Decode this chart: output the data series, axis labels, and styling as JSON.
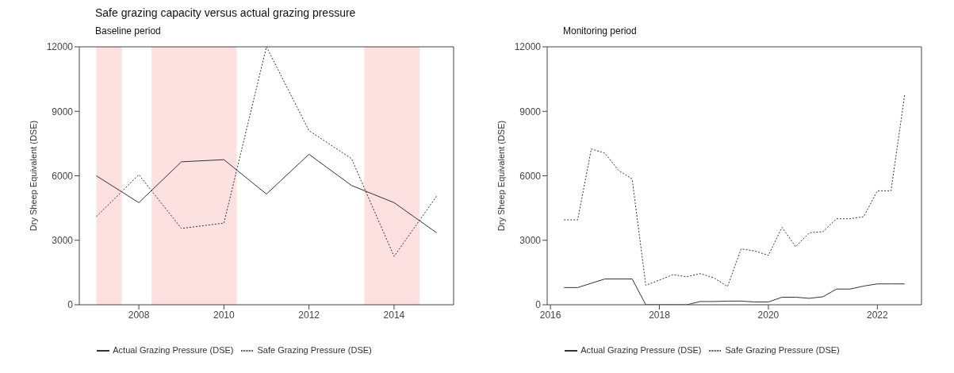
{
  "chart_data": [
    {
      "type": "line",
      "title": "Safe grazing capacity versus actual grazing pressure",
      "subtitle": "Baseline period",
      "ylabel": "Dry Sheep Equivalent (DSE)",
      "x": [
        2007,
        2008,
        2009,
        2010,
        2011,
        2012,
        2013,
        2014,
        2015
      ],
      "series": [
        {
          "name": "Actual Grazing Pressure (DSE)",
          "color": "#333333",
          "line_style": "solid",
          "values": [
            6000,
            4750,
            6650,
            6750,
            5150,
            7000,
            5550,
            4750,
            3350
          ]
        },
        {
          "name": "Safe Grazing Pressure (DSE)",
          "color": "#333333",
          "line_style": "dotted",
          "values": [
            4100,
            6050,
            3550,
            3800,
            12000,
            8100,
            6800,
            2250,
            5050
          ]
        }
      ],
      "bands": [
        {
          "axis": "x",
          "from": 2007,
          "to": 2007.6,
          "color": "#fde0e0"
        },
        {
          "axis": "x",
          "from": 2008.3,
          "to": 2010.3,
          "color": "#fde0e0"
        },
        {
          "axis": "x",
          "from": 2013.3,
          "to": 2014.6,
          "color": "#fde0e0"
        }
      ],
      "xlim": [
        2006.6,
        2015.4
      ],
      "xticks": [
        2008,
        2010,
        2012,
        2014
      ],
      "ylim": [
        0,
        12000
      ],
      "yticks": [
        0,
        3000,
        6000,
        9000,
        12000
      ],
      "grid": false,
      "legend": "bottom",
      "marker": "none"
    },
    {
      "type": "line",
      "subtitle": "Monitoring period",
      "ylabel": "Dry Sheep Equivalent (DSE)",
      "x": [
        2016.25,
        2016.5,
        2016.75,
        2017,
        2017.25,
        2017.5,
        2017.75,
        2018,
        2018.25,
        2018.5,
        2018.75,
        2019,
        2019.25,
        2019.5,
        2019.75,
        2020,
        2020.25,
        2020.5,
        2020.75,
        2021,
        2021.25,
        2021.5,
        2021.75,
        2022,
        2022.25,
        2022.5
      ],
      "series": [
        {
          "name": "Actual Grazing Pressure (DSE)",
          "color": "#333333",
          "line_style": "solid",
          "values": [
            800,
            800,
            1000,
            1200,
            1200,
            1200,
            0,
            0,
            0,
            0,
            150,
            150,
            170,
            170,
            130,
            130,
            350,
            350,
            300,
            370,
            730,
            730,
            870,
            970,
            970,
            970
          ]
        },
        {
          "name": "Safe Grazing Pressure (DSE)",
          "color": "#333333",
          "line_style": "dotted",
          "values": [
            3950,
            3950,
            7250,
            7050,
            6250,
            5850,
            900,
            1150,
            1400,
            1300,
            1450,
            1250,
            850,
            2600,
            2500,
            2300,
            3600,
            2700,
            3350,
            3400,
            4000,
            4000,
            4100,
            5300,
            5300,
            9750
          ]
        }
      ],
      "xlim": [
        2015.94,
        2022.81
      ],
      "xticks": [
        2016,
        2018,
        2020,
        2022
      ],
      "ylim": [
        0,
        12000
      ],
      "yticks": [
        0,
        3000,
        6000,
        9000,
        12000
      ],
      "grid": false,
      "legend": "bottom",
      "marker": "none"
    }
  ]
}
